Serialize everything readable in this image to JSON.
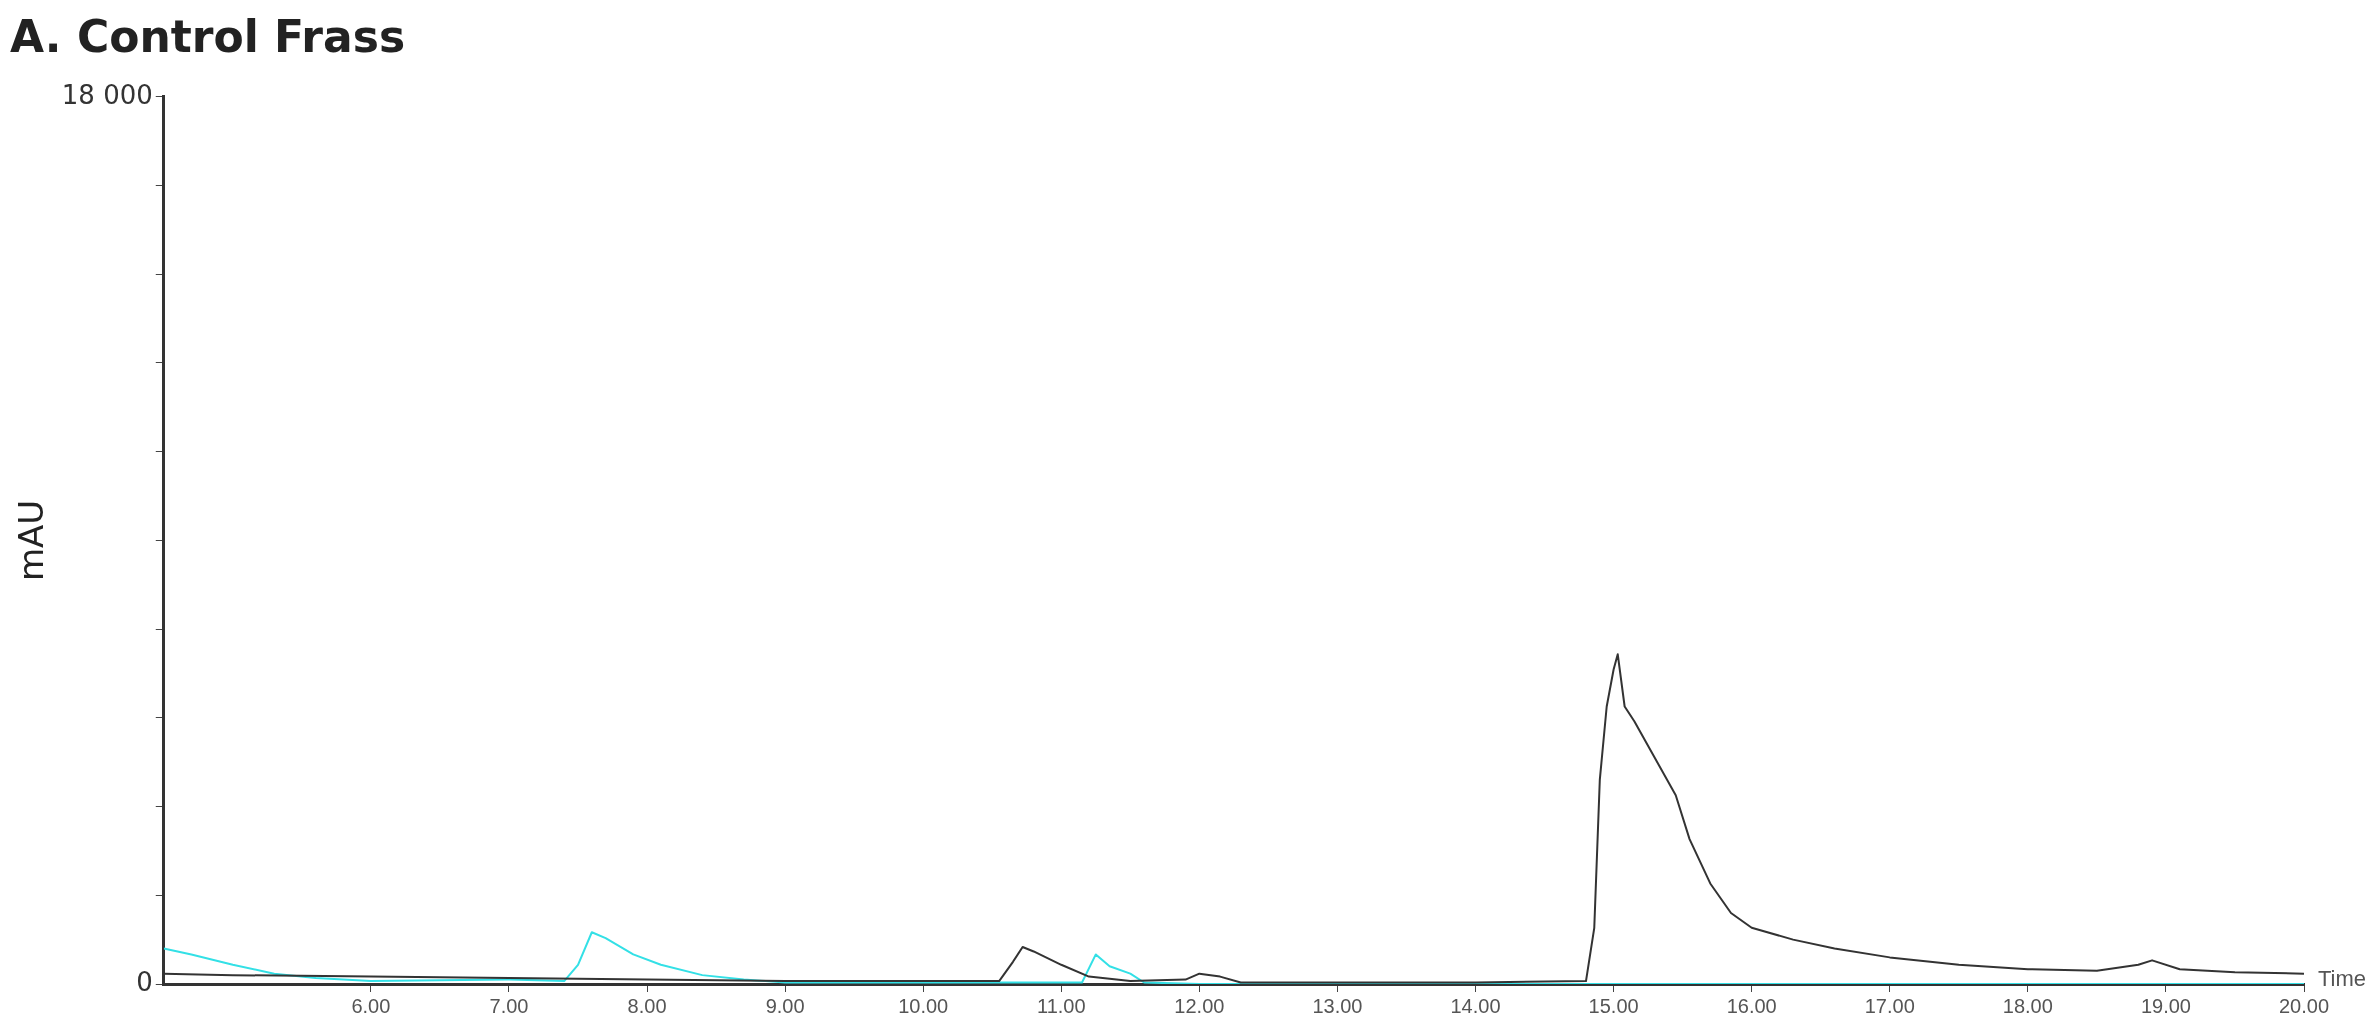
{
  "chart_data": {
    "type": "line",
    "title": "A. Control Frass",
    "xlabel": "Time",
    "ylabel": "mAU",
    "xlim": [
      4.5,
      20
    ],
    "xticks": [
      {
        "value": 6,
        "label": "6.00"
      },
      {
        "value": 7,
        "label": "7.00"
      },
      {
        "value": 8,
        "label": "8.00"
      },
      {
        "value": 9,
        "label": "9.00"
      },
      {
        "value": 10,
        "label": "10.00"
      },
      {
        "value": 11,
        "label": "11.00"
      },
      {
        "value": 12,
        "label": "12.00"
      },
      {
        "value": 13,
        "label": "13.00"
      },
      {
        "value": 14,
        "label": "14.00"
      },
      {
        "value": 15,
        "label": "15.00"
      },
      {
        "value": 16,
        "label": "16.00"
      },
      {
        "value": 17,
        "label": "17.00"
      },
      {
        "value": 18,
        "label": "18.00"
      },
      {
        "value": 19,
        "label": "19.00"
      },
      {
        "value": 20,
        "label": "20.00"
      }
    ],
    "ylim": [
      0,
      18000
    ],
    "yticks": [
      0,
      {
        "value": 1800,
        "label": null
      },
      {
        "value": 3600,
        "label": null
      },
      {
        "value": 5400,
        "label": null
      },
      {
        "value": 7200,
        "label": null
      },
      {
        "value": 9000,
        "label": null
      },
      {
        "value": 10800,
        "label": null
      },
      {
        "value": 12600,
        "label": null
      },
      {
        "value": 14400,
        "label": null
      },
      {
        "value": 16200,
        "label": null
      },
      {
        "value": 18000,
        "label": "18 000"
      }
    ],
    "grid": false,
    "legend": false,
    "marker": "none",
    "line_style": "solid",
    "series": [
      {
        "color": "#333333",
        "x": [
          4.5,
          5,
          6,
          7,
          8,
          9,
          10,
          10.55,
          10.65,
          10.72,
          10.8,
          11,
          11.2,
          11.5,
          11.9,
          12,
          12.15,
          12.3,
          13,
          14,
          14.8,
          14.86,
          14.9,
          14.95,
          15,
          15.03,
          15.08,
          15.15,
          15.3,
          15.45,
          15.55,
          15.7,
          15.85,
          16,
          16.3,
          16.6,
          17,
          17.5,
          18,
          18.5,
          18.8,
          18.9,
          19.1,
          19.5,
          20
        ],
        "values": [
          210,
          180,
          150,
          120,
          90,
          60,
          60,
          60,
          450,
          750,
          660,
          390,
          150,
          60,
          90,
          210,
          150,
          30,
          30,
          30,
          60,
          1140,
          4140,
          5630,
          6380,
          6690,
          5630,
          5330,
          4580,
          3830,
          2940,
          2040,
          1440,
          1140,
          900,
          720,
          540,
          390,
          300,
          270,
          390,
          480,
          300,
          240,
          210
        ]
      },
      {
        "color": "#33e0e6",
        "x": [
          4.5,
          4.7,
          5,
          5.3,
          5.6,
          6,
          7,
          7.4,
          7.5,
          7.6,
          7.7,
          7.9,
          8.1,
          8.4,
          8.7,
          9,
          11.15,
          11.25,
          11.35,
          11.5,
          11.6,
          12,
          20
        ],
        "values": [
          720,
          600,
          390,
          210,
          120,
          60,
          90,
          60,
          390,
          1050,
          930,
          600,
          390,
          180,
          90,
          30,
          30,
          600,
          360,
          210,
          30,
          0,
          0
        ]
      }
    ]
  }
}
